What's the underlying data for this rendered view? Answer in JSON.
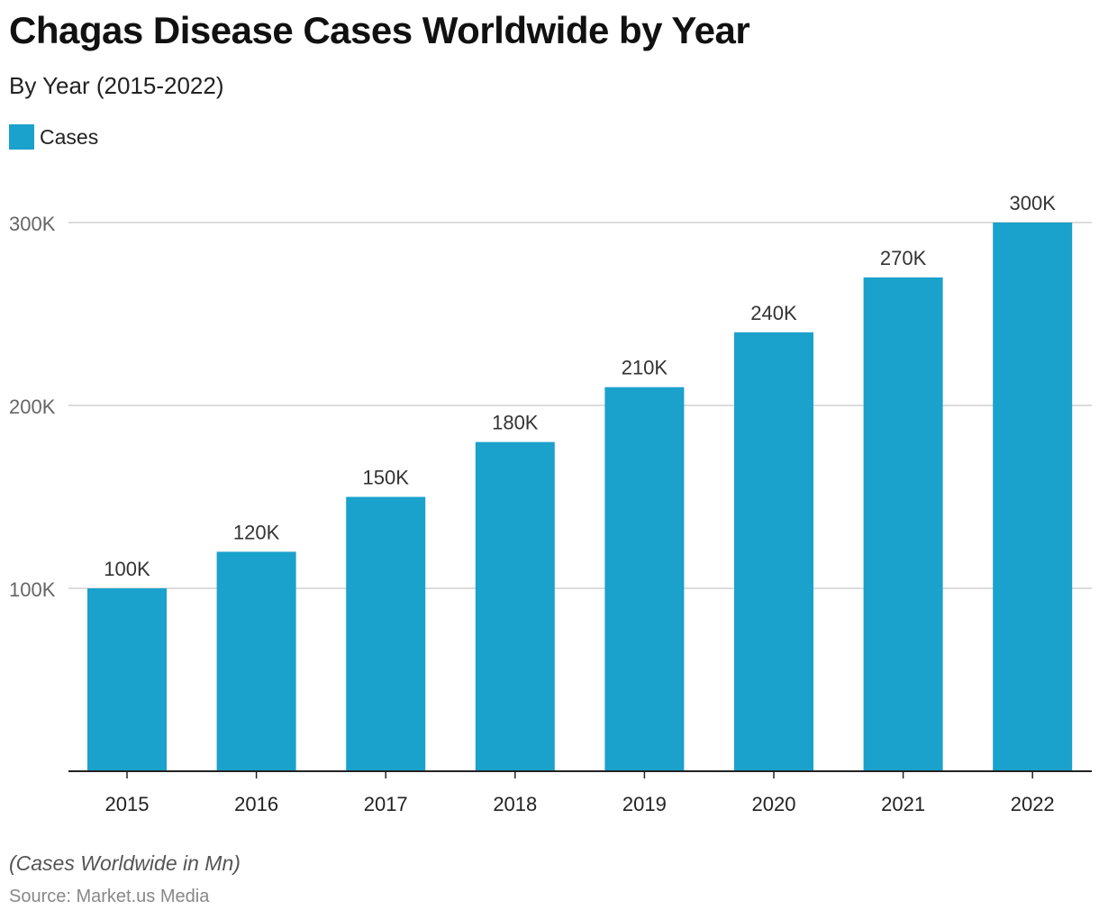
{
  "header": {
    "title": "Chagas Disease Cases Worldwide by Year",
    "subtitle": "By Year (2015-2022)"
  },
  "footer": {
    "note": "(Cases Worldwide in Mn)",
    "source": "Source: Market.us Media"
  },
  "colors": {
    "bar": "#1aa1cc",
    "grid": "#d0d0d0",
    "axis": "#222222",
    "tick_text": "#666666",
    "label_text": "#333333"
  },
  "chart_data": {
    "type": "bar",
    "categories": [
      "2015",
      "2016",
      "2017",
      "2018",
      "2019",
      "2020",
      "2021",
      "2022"
    ],
    "series": [
      {
        "name": "Cases",
        "values": [
          100000,
          120000,
          150000,
          180000,
          210000,
          240000,
          270000,
          300000
        ]
      }
    ],
    "data_labels": [
      "100K",
      "120K",
      "150K",
      "180K",
      "210K",
      "240K",
      "270K",
      "300K"
    ],
    "y_ticks": [
      {
        "value": 100000,
        "label": "100K"
      },
      {
        "value": 200000,
        "label": "200K"
      },
      {
        "value": 300000,
        "label": "300K"
      }
    ],
    "ylim": [
      0,
      300000
    ],
    "grid": true,
    "legend_position": "top-left"
  }
}
